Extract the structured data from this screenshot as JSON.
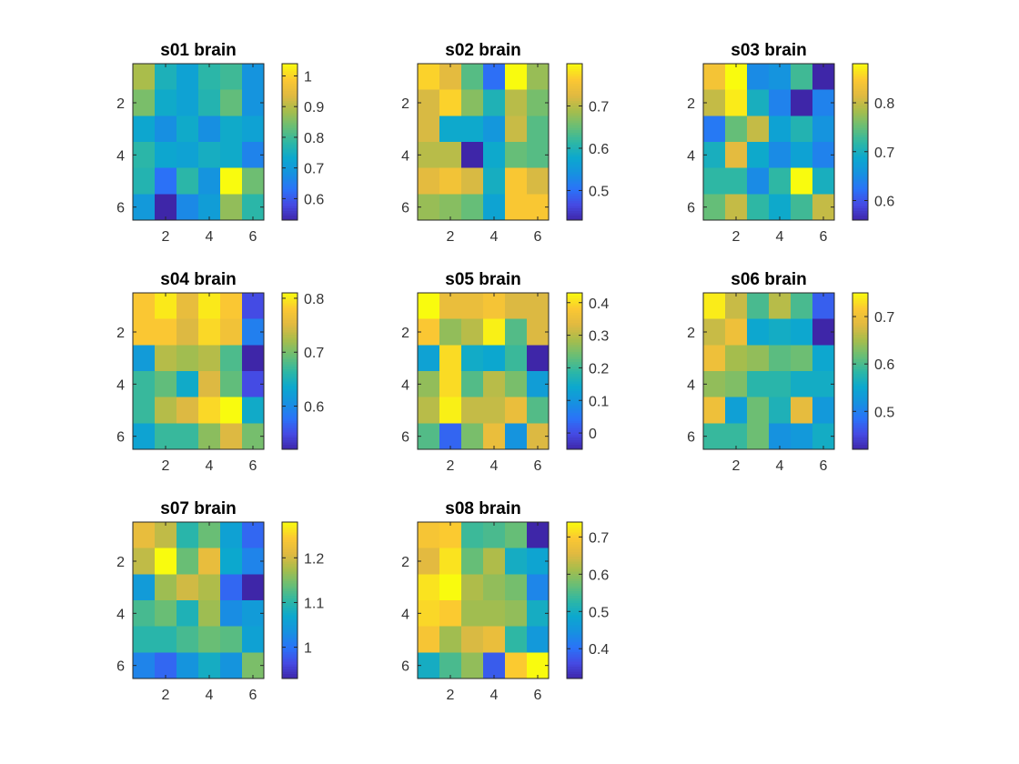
{
  "chart_data": [
    {
      "type": "heatmap",
      "title": "s01 brain",
      "x_ticks": [
        "2",
        "4",
        "6"
      ],
      "y_ticks": [
        "2",
        "4",
        "6"
      ],
      "colorbar": {
        "min": 0.53,
        "max": 1.04,
        "ticks": [
          0.6,
          0.7,
          0.8,
          0.9,
          1
        ],
        "tick_labels": [
          "0.6",
          "0.7",
          "0.8",
          "0.9",
          "1"
        ]
      },
      "values": [
        [
          0.89,
          0.76,
          0.72,
          0.78,
          0.8,
          0.69
        ],
        [
          0.85,
          0.74,
          0.72,
          0.77,
          0.83,
          0.69
        ],
        [
          0.73,
          0.68,
          0.74,
          0.68,
          0.74,
          0.72
        ],
        [
          0.78,
          0.73,
          0.72,
          0.75,
          0.74,
          0.66
        ],
        [
          0.77,
          0.63,
          0.78,
          0.69,
          1.04,
          0.84
        ],
        [
          0.7,
          0.53,
          0.67,
          0.71,
          0.87,
          0.78
        ]
      ]
    },
    {
      "type": "heatmap",
      "title": "s02 brain",
      "x_ticks": [
        "2",
        "4",
        "6"
      ],
      "y_ticks": [
        "2",
        "4",
        "6"
      ],
      "colorbar": {
        "min": 0.43,
        "max": 0.8,
        "ticks": [
          0.5,
          0.6,
          0.7
        ],
        "tick_labels": [
          "0.5",
          "0.6",
          "0.7"
        ]
      },
      "values": [
        [
          0.77,
          0.73,
          0.64,
          0.5,
          0.8,
          0.68
        ],
        [
          0.72,
          0.77,
          0.67,
          0.6,
          0.7,
          0.66
        ],
        [
          0.72,
          0.58,
          0.58,
          0.55,
          0.71,
          0.64
        ],
        [
          0.7,
          0.7,
          0.43,
          0.58,
          0.65,
          0.64
        ],
        [
          0.73,
          0.75,
          0.72,
          0.59,
          0.76,
          0.72
        ],
        [
          0.68,
          0.67,
          0.65,
          0.57,
          0.76,
          0.76
        ]
      ]
    },
    {
      "type": "heatmap",
      "title": "s03 brain",
      "x_ticks": [
        "2",
        "4",
        "6"
      ],
      "y_ticks": [
        "2",
        "4",
        "6"
      ],
      "colorbar": {
        "min": 0.56,
        "max": 0.88,
        "ticks": [
          0.6,
          0.7,
          0.8
        ],
        "tick_labels": [
          "0.6",
          "0.7",
          "0.8"
        ]
      },
      "values": [
        [
          0.84,
          0.88,
          0.65,
          0.66,
          0.73,
          0.56
        ],
        [
          0.8,
          0.87,
          0.7,
          0.64,
          0.56,
          0.64
        ],
        [
          0.63,
          0.75,
          0.8,
          0.68,
          0.71,
          0.66
        ],
        [
          0.7,
          0.82,
          0.69,
          0.65,
          0.68,
          0.64
        ],
        [
          0.72,
          0.72,
          0.65,
          0.72,
          0.88,
          0.7
        ],
        [
          0.75,
          0.8,
          0.72,
          0.69,
          0.73,
          0.8
        ]
      ]
    },
    {
      "type": "heatmap",
      "title": "s04 brain",
      "x_ticks": [
        "2",
        "4",
        "6"
      ],
      "y_ticks": [
        "2",
        "4",
        "6"
      ],
      "colorbar": {
        "min": 0.52,
        "max": 0.81,
        "ticks": [
          0.6,
          0.7,
          0.8
        ],
        "tick_labels": [
          "0.6",
          "0.7",
          "0.8"
        ]
      },
      "values": [
        [
          0.78,
          0.8,
          0.76,
          0.8,
          0.78,
          0.55
        ],
        [
          0.78,
          0.78,
          0.75,
          0.79,
          0.77,
          0.59
        ],
        [
          0.62,
          0.73,
          0.72,
          0.73,
          0.68,
          0.52
        ],
        [
          0.67,
          0.69,
          0.64,
          0.75,
          0.69,
          0.55
        ],
        [
          0.67,
          0.73,
          0.75,
          0.79,
          0.81,
          0.64
        ],
        [
          0.63,
          0.67,
          0.67,
          0.71,
          0.75,
          0.7
        ]
      ]
    },
    {
      "type": "heatmap",
      "title": "s05 brain",
      "x_ticks": [
        "2",
        "4",
        "6"
      ],
      "y_ticks": [
        "2",
        "4",
        "6"
      ],
      "colorbar": {
        "min": -0.05,
        "max": 0.43,
        "ticks": [
          0,
          0.1,
          0.2,
          0.3,
          0.4
        ],
        "tick_labels": [
          "0",
          "0.1",
          "0.2",
          "0.3",
          "0.4"
        ]
      },
      "values": [
        [
          0.43,
          0.35,
          0.35,
          0.37,
          0.33,
          0.33
        ],
        [
          0.38,
          0.27,
          0.3,
          0.42,
          0.22,
          0.33
        ],
        [
          0.13,
          0.4,
          0.15,
          0.14,
          0.2,
          -0.05
        ],
        [
          0.27,
          0.4,
          0.22,
          0.3,
          0.25,
          0.12
        ],
        [
          0.3,
          0.42,
          0.31,
          0.31,
          0.35,
          0.22
        ],
        [
          0.22,
          0.03,
          0.25,
          0.35,
          0.1,
          0.33
        ]
      ]
    },
    {
      "type": "heatmap",
      "title": "s06 brain",
      "x_ticks": [
        "2",
        "4",
        "6"
      ],
      "y_ticks": [
        "2",
        "4",
        "6"
      ],
      "colorbar": {
        "min": 0.42,
        "max": 0.75,
        "ticks": [
          0.5,
          0.6,
          0.7
        ],
        "tick_labels": [
          "0.5",
          "0.6",
          "0.7"
        ]
      },
      "values": [
        [
          0.74,
          0.67,
          0.6,
          0.66,
          0.6,
          0.47
        ],
        [
          0.67,
          0.7,
          0.55,
          0.56,
          0.55,
          0.42
        ],
        [
          0.7,
          0.65,
          0.64,
          0.61,
          0.62,
          0.55
        ],
        [
          0.64,
          0.63,
          0.58,
          0.58,
          0.56,
          0.56
        ],
        [
          0.7,
          0.54,
          0.62,
          0.57,
          0.69,
          0.53
        ],
        [
          0.59,
          0.59,
          0.62,
          0.52,
          0.53,
          0.56
        ]
      ]
    },
    {
      "type": "heatmap",
      "title": "s07 brain",
      "x_ticks": [
        "2",
        "4",
        "6"
      ],
      "y_ticks": [
        "2",
        "4",
        "6"
      ],
      "colorbar": {
        "min": 0.93,
        "max": 1.28,
        "ticks": [
          1,
          1.1,
          1.2
        ],
        "tick_labels": [
          "1",
          "1.1",
          "1.2"
        ]
      },
      "values": [
        [
          1.22,
          1.19,
          1.1,
          1.14,
          1.06,
          0.99
        ],
        [
          1.19,
          1.28,
          1.14,
          1.22,
          1.07,
          1.02
        ],
        [
          1.05,
          1.17,
          1.2,
          1.18,
          0.99,
          0.93
        ],
        [
          1.12,
          1.14,
          1.09,
          1.17,
          1.03,
          1.05
        ],
        [
          1.1,
          1.1,
          1.12,
          1.14,
          1.13,
          1.06
        ],
        [
          1.02,
          0.99,
          1.04,
          1.08,
          1.04,
          1.15
        ]
      ]
    },
    {
      "type": "heatmap",
      "title": "s08 brain",
      "x_ticks": [
        "2",
        "4",
        "6"
      ],
      "y_ticks": [
        "2",
        "4",
        "6"
      ],
      "colorbar": {
        "min": 0.32,
        "max": 0.74,
        "ticks": [
          0.4,
          0.5,
          0.6,
          0.7
        ],
        "tick_labels": [
          "0.4",
          "0.5",
          "0.6",
          "0.7"
        ]
      },
      "values": [
        [
          0.69,
          0.7,
          0.54,
          0.55,
          0.57,
          0.32
        ],
        [
          0.66,
          0.72,
          0.57,
          0.62,
          0.5,
          0.48
        ],
        [
          0.72,
          0.74,
          0.62,
          0.6,
          0.58,
          0.43
        ],
        [
          0.71,
          0.7,
          0.61,
          0.61,
          0.6,
          0.5
        ],
        [
          0.69,
          0.61,
          0.65,
          0.67,
          0.53,
          0.46
        ],
        [
          0.5,
          0.55,
          0.6,
          0.38,
          0.7,
          0.74
        ]
      ]
    }
  ]
}
